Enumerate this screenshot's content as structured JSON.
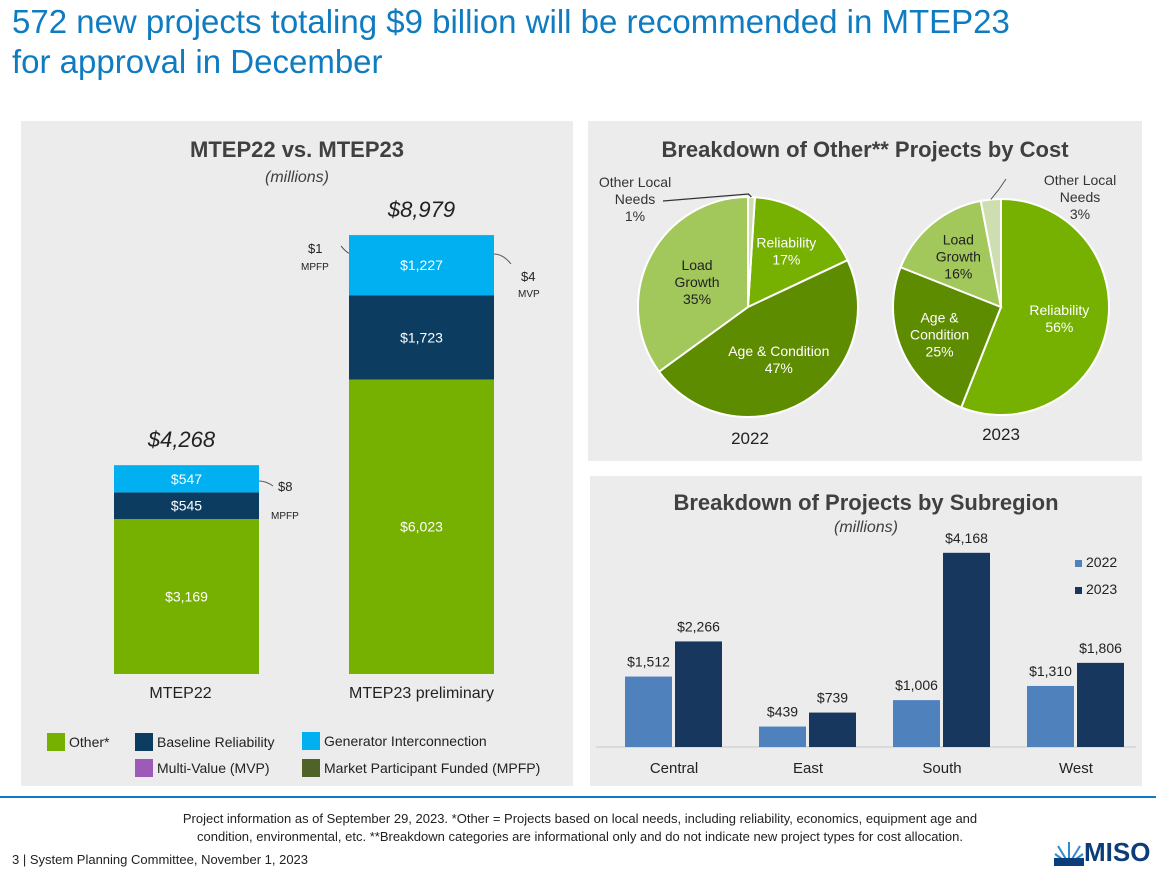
{
  "slide": {
    "title_line1": "572 new projects totaling $9 billion will be recommended in MTEP23",
    "title_line2": "for approval in December",
    "footnote_line1": "Project information as of September 29, 2023. *Other = Projects based on local needs, including reliability, economics, equipment age and",
    "footnote_line2": "condition, environmental, etc. **Breakdown categories are informational only and do not indicate new project types for cost allocation.",
    "page_footer": "3  |  System Planning Committee, November 1, 2023",
    "logo_text": "MISO"
  },
  "chart_data": [
    {
      "type": "bar",
      "stacked": true,
      "title": "MTEP22 vs. MTEP23",
      "subtitle": "(millions)",
      "categories": [
        "MTEP22",
        "MTEP23 preliminary"
      ],
      "totals": [
        "$4,268",
        "$8,979"
      ],
      "total_values": [
        4268,
        8979
      ],
      "series": [
        {
          "name": "Other*",
          "color": "#76b000",
          "values": [
            3169,
            6023
          ],
          "labels": [
            "$3,169",
            "$6,023"
          ]
        },
        {
          "name": "Baseline Reliability",
          "color": "#0d3c61",
          "values": [
            545,
            1723
          ],
          "labels": [
            "$545",
            "$1,723"
          ]
        },
        {
          "name": "Generator Interconnection",
          "color": "#00b0f0",
          "values": [
            547,
            1227
          ],
          "labels": [
            "$547",
            "$1,227"
          ]
        },
        {
          "name": "Multi-Value (MVP)",
          "color": "#9e5ab8",
          "values": [
            0,
            4
          ]
        },
        {
          "name": "Market Participant Funded (MPFP)",
          "color": "#4f6228",
          "values": [
            8,
            1
          ]
        }
      ],
      "callouts": [
        {
          "value": "$8",
          "label": "MPFP"
        },
        {
          "value": "$1",
          "label": "MPFP"
        },
        {
          "value": "$4",
          "label": "MVP"
        }
      ]
    },
    {
      "type": "pie",
      "title": "Breakdown of Other** Projects by Cost",
      "charts": [
        {
          "year": "2022",
          "slices": [
            {
              "name": "Reliability",
              "value": 17,
              "label": "17%",
              "color": "#76b000"
            },
            {
              "name": "Age & Condition",
              "value": 47,
              "label": "47%",
              "color": "#5e8c00"
            },
            {
              "name": "Load Growth",
              "value": 35,
              "label": "35%",
              "color": "#a2c75a"
            },
            {
              "name": "Other Local Needs",
              "value": 1,
              "label": "1%",
              "color": "#cfdeb0"
            }
          ]
        },
        {
          "year": "2023",
          "slices": [
            {
              "name": "Reliability",
              "value": 56,
              "label": "56%",
              "color": "#76b000"
            },
            {
              "name": "Age & Condition",
              "value": 25,
              "label": "25%",
              "color": "#5e8c00"
            },
            {
              "name": "Load Growth",
              "value": 16,
              "label": "16%",
              "color": "#a2c75a"
            },
            {
              "name": "Other Local Needs",
              "value": 3,
              "label": "3%",
              "color": "#cfdeb0"
            }
          ]
        }
      ]
    },
    {
      "type": "bar",
      "title": "Breakdown of Projects by Subregion",
      "subtitle": "(millions)",
      "categories": [
        "Central",
        "East",
        "South",
        "West"
      ],
      "ylim": [
        0,
        4400
      ],
      "series": [
        {
          "name": "2022",
          "color": "#4f81bd",
          "values": [
            1512,
            439,
            1006,
            1310
          ],
          "labels": [
            "$1,512",
            "$439",
            "$1,006",
            "$1,310"
          ]
        },
        {
          "name": "2023",
          "color": "#17375e",
          "values": [
            2266,
            739,
            4168,
            1806
          ],
          "labels": [
            "$2,266",
            "$739",
            "$4,168",
            "$1,806"
          ]
        }
      ],
      "legend": "top-right"
    }
  ]
}
